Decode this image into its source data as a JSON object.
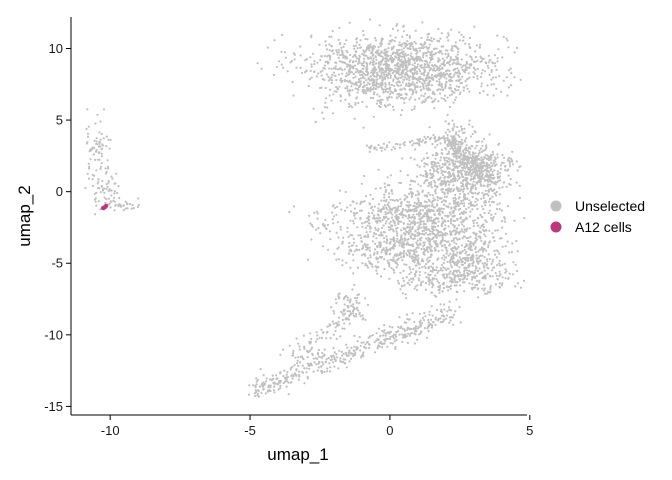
{
  "chart_data": {
    "type": "scatter",
    "title": "",
    "xlabel": "umap_1",
    "ylabel": "umap_2",
    "xlim": [
      -11.4,
      4.9
    ],
    "ylim": [
      -15.6,
      12.2
    ],
    "x_ticks": [
      -10,
      -5,
      0,
      5
    ],
    "y_ticks": [
      -15,
      -10,
      -5,
      0,
      5,
      10
    ],
    "grid": false,
    "legend_position": "right",
    "series": [
      {
        "name": "Unselected",
        "color": "#c0c0c0",
        "clusters": [
          {
            "cx": 0.5,
            "cy": 9.0,
            "sx": 1.8,
            "sy": 1.0,
            "n": 1100
          },
          {
            "cx": -0.5,
            "cy": 7.5,
            "sx": 0.9,
            "sy": 1.0,
            "n": 250
          },
          {
            "cx": 1.5,
            "cy": 7.2,
            "sx": 1.0,
            "sy": 0.6,
            "n": 150
          },
          {
            "cx": 2.8,
            "cy": 1.8,
            "sx": 0.9,
            "sy": 0.8,
            "n": 450
          },
          {
            "cx": 2.3,
            "cy": 0.2,
            "sx": 1.0,
            "sy": 1.0,
            "n": 350
          },
          {
            "cx": 0.7,
            "cy": -1.5,
            "sx": 1.3,
            "sy": 0.8,
            "n": 500
          },
          {
            "cx": 2.0,
            "cy": -3.5,
            "sx": 1.0,
            "sy": 1.0,
            "n": 450
          },
          {
            "cx": 0.0,
            "cy": -4.0,
            "sx": 1.0,
            "sy": 0.8,
            "n": 300
          },
          {
            "cx": 3.0,
            "cy": -5.5,
            "sx": 0.7,
            "sy": 0.8,
            "n": 250
          },
          {
            "cx": 2.5,
            "cy": 4.0,
            "sx": 0.5,
            "sy": 0.5,
            "n": 60
          },
          {
            "cx": -1.4,
            "cy": -8.0,
            "sx": 0.3,
            "sy": 0.5,
            "n": 60
          },
          {
            "cx": -2.5,
            "cy": -2.3,
            "sx": 0.3,
            "sy": 0.3,
            "n": 15
          },
          {
            "cx": -2.6,
            "cy": 5.0,
            "sx": 0.1,
            "sy": 0.1,
            "n": 3
          },
          {
            "cx": -10.5,
            "cy": 3.0,
            "sx": 0.25,
            "sy": 1.0,
            "n": 70
          },
          {
            "cx": -10.1,
            "cy": 0.0,
            "sx": 0.35,
            "sy": 0.8,
            "n": 60
          },
          {
            "cx": -9.5,
            "cy": -0.9,
            "sx": 0.4,
            "sy": 0.2,
            "n": 25
          }
        ],
        "paths": [
          {
            "from": [
              -4.8,
              -13.8
            ],
            "to": [
              2.2,
              -8.5
            ],
            "spread": 0.4,
            "n": 450
          },
          {
            "from": [
              -3.5,
              -11.5
            ],
            "to": [
              -1.2,
              -8.3
            ],
            "spread": 0.4,
            "n": 90
          },
          {
            "from": [
              -0.8,
              3.0
            ],
            "to": [
              2.0,
              3.8
            ],
            "spread": 0.15,
            "n": 70
          },
          {
            "from": [
              2.0,
              3.8
            ],
            "to": [
              3.7,
              0.5
            ],
            "spread": 0.3,
            "n": 140
          },
          {
            "from": [
              0.5,
              -6.2
            ],
            "to": [
              2.5,
              -6.0
            ],
            "spread": 0.5,
            "n": 120
          }
        ]
      },
      {
        "name": "A12 cells",
        "color": "#c0367c",
        "points": [
          [
            -10.2,
            -1.1
          ],
          [
            -10.15,
            -1.0
          ],
          [
            -10.25,
            -1.15
          ]
        ]
      }
    ]
  }
}
